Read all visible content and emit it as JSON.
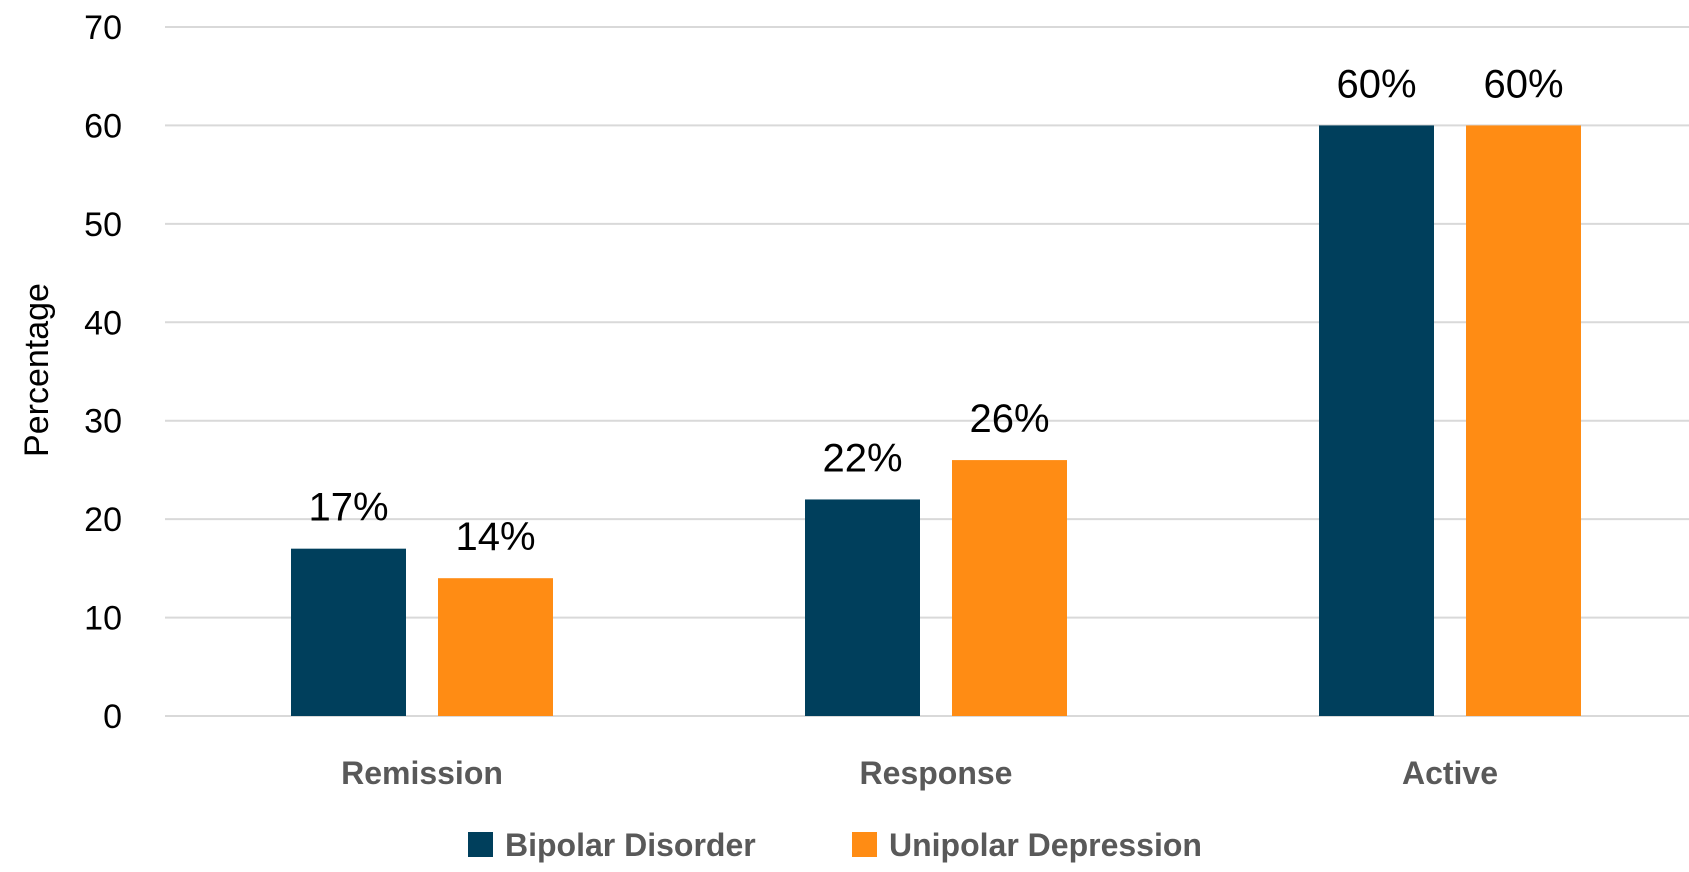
{
  "chart_data": {
    "type": "bar",
    "title": "",
    "xlabel": "",
    "ylabel": "Percentage",
    "ylim": [
      0,
      70
    ],
    "yticks": [
      0,
      10,
      20,
      30,
      40,
      50,
      60,
      70
    ],
    "grid": true,
    "legend_position": "bottom",
    "categories": [
      "Remission",
      "Response",
      "Active"
    ],
    "series": [
      {
        "name": "Bipolar Disorder",
        "color": "#003f5c",
        "values": [
          17,
          22,
          60
        ],
        "labels": [
          "17%",
          "22%",
          "60%"
        ]
      },
      {
        "name": "Unipolar Depression",
        "color": "#ff8c14",
        "values": [
          14,
          26,
          60
        ],
        "labels": [
          "14%",
          "26%",
          "60%"
        ]
      }
    ]
  }
}
